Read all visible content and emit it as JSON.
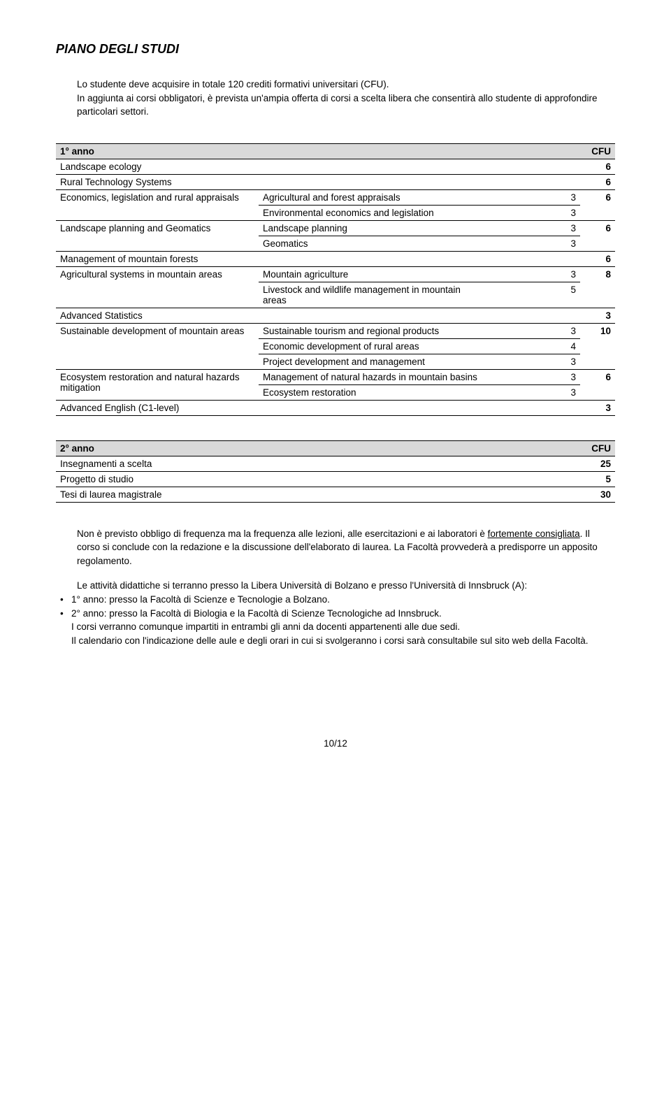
{
  "heading": "PIANO DEGLI STUDI",
  "intro_p1": "Lo studente deve acquisire in totale 120 crediti formativi universitari (CFU).",
  "intro_p2": "In aggiunta ai corsi obbligatori, è prevista un'ampia offerta di corsi a scelta libera che consentirà allo studente di approfondire particolari settori.",
  "year1": {
    "label": "1° anno",
    "cfu_label": "CFU",
    "rows": {
      "landscape_ecology": {
        "name": "Landscape ecology",
        "cfu": "6"
      },
      "rural_tech": {
        "name": "Rural Technology Systems",
        "cfu": "6"
      },
      "econ": {
        "name": "Economics, legislation and rural appraisals",
        "sub1": {
          "name": "Agricultural and forest appraisals",
          "cfu": "3"
        },
        "sub2": {
          "name": "Environmental economics and legislation",
          "cfu": "3"
        },
        "cfu": "6"
      },
      "planning": {
        "name": "Landscape planning and Geomatics",
        "sub1": {
          "name": "Landscape planning",
          "cfu": "3"
        },
        "sub2": {
          "name": "Geomatics",
          "cfu": "3"
        },
        "cfu": "6"
      },
      "mountain_forests": {
        "name": "Management of mountain forests",
        "cfu": "6"
      },
      "agri_systems": {
        "name": "Agricultural systems in mountain areas",
        "sub1": {
          "name": "Mountain agriculture",
          "cfu": "3"
        },
        "sub2": {
          "name": "Livestock and wildlife management in mountain",
          "cfu": "5"
        },
        "sub3": {
          "name": "areas",
          "cfu": ""
        },
        "cfu": "8"
      },
      "adv_stats": {
        "name": "Advanced Statistics",
        "cfu": "3"
      },
      "sustainable": {
        "name": "Sustainable development of mountain areas",
        "sub1": {
          "name": "Sustainable tourism and regional products",
          "cfu": "3"
        },
        "sub2": {
          "name": "Economic development of rural areas",
          "cfu": "4"
        },
        "sub3": {
          "name": "Project development and management",
          "cfu": "3"
        },
        "cfu": "10"
      },
      "ecosystem": {
        "name": "Ecosystem restoration and natural hazards mitigation",
        "sub1": {
          "name": "Management of natural hazards in mountain basins",
          "cfu": "3"
        },
        "sub2": {
          "name": "Ecosystem restoration",
          "cfu": "3"
        },
        "cfu": "6"
      },
      "english": {
        "name": "Advanced English (C1-level)",
        "cfu": "3"
      }
    }
  },
  "year2": {
    "label": "2° anno",
    "cfu_label": "CFU",
    "rows": {
      "electives": {
        "name": "Insegnamenti a scelta",
        "cfu": "25"
      },
      "project": {
        "name": "Progetto di studio",
        "cfu": "5"
      },
      "thesis": {
        "name": "Tesi di laurea magistrale",
        "cfu": "30"
      }
    }
  },
  "notes": {
    "p1a": "Non è previsto obbligo di frequenza ma la frequenza alle lezioni, alle esercitazioni e ai laboratori è ",
    "p1u": "fortemente consigliata",
    "p1b": ". Il corso si conclude con la redazione e la discussione dell'elaborato di laurea. La Facoltà provvederà a predisporre un apposito regolamento.",
    "p2": "Le attività didattiche si terranno presso la Libera Università di Bolzano e presso l'Università di Innsbruck (A):",
    "li1": "1° anno: presso la Facoltà di Scienze e Tecnologie a Bolzano.",
    "li2": "2° anno: presso la Facoltà di Biologia e la Facoltà di Scienze Tecnologiche ad Innsbruck.",
    "p3": "I corsi verranno comunque impartiti in entrambi gli anni da docenti appartenenti alle due sedi.",
    "p4": "Il calendario con l'indicazione delle aule e degli orari in cui si svolgeranno i corsi sarà consultabile sul sito web della Facoltà."
  },
  "page_num": "10/12"
}
